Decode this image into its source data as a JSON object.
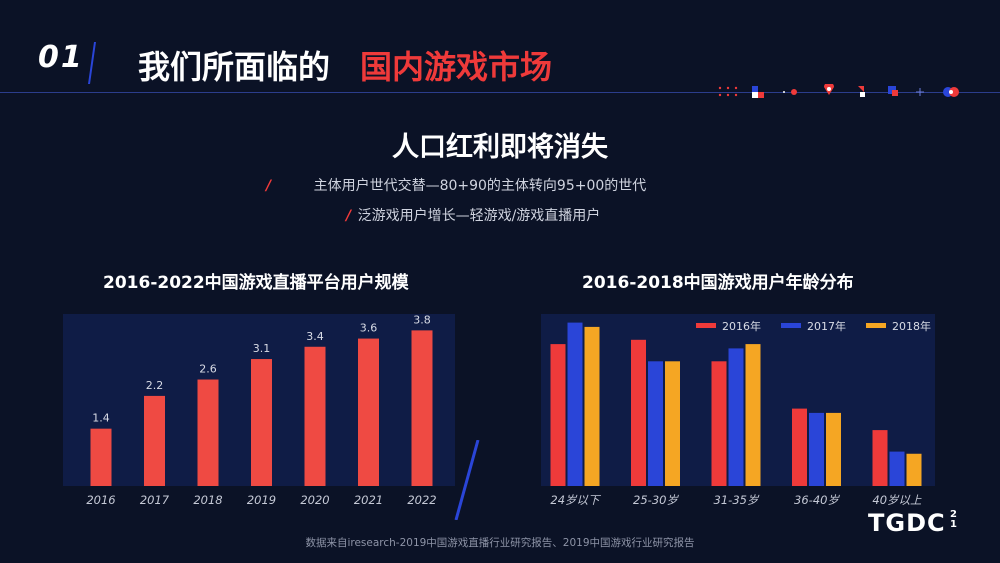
{
  "header": {
    "section_number": "01",
    "title_prefix": "我们所面临的",
    "title_highlight": "国内游戏市场"
  },
  "subtitle": "人口红利即将消失",
  "bullets": [
    "主体用户世代交替—80+90的主体转向95+00的世代",
    "泛游戏用户增长—轻游戏/游戏直播用户"
  ],
  "colors": {
    "accent_red": "#ef3a3a",
    "accent_blue": "#2a45d8",
    "accent_orange": "#f5a623",
    "background": "#0b1226"
  },
  "chart_data": [
    {
      "type": "bar",
      "title": "2016-2022中国游戏直播平台用户规模",
      "categories": [
        "2016",
        "2017",
        "2018",
        "2019",
        "2020",
        "2021",
        "2022"
      ],
      "values": [
        1.4,
        2.2,
        2.6,
        3.1,
        3.4,
        3.6,
        3.8
      ],
      "ylim": [
        0,
        4.2
      ],
      "grid": false
    },
    {
      "type": "bar",
      "title": "2016-2018中国游戏用户年龄分布",
      "categories": [
        "24岁以下",
        "25-30岁",
        "31-35岁",
        "36-40岁",
        "40岁以上"
      ],
      "series": [
        {
          "name": "2016年",
          "color": "#ef3a3a",
          "values": [
            33,
            34,
            29,
            18,
            13
          ]
        },
        {
          "name": "2017年",
          "color": "#2a45d8",
          "values": [
            38,
            29,
            32,
            17,
            8
          ]
        },
        {
          "name": "2018年",
          "color": "#f5a623",
          "values": [
            37,
            29,
            33,
            17,
            7.5
          ]
        }
      ],
      "ylim": [
        0,
        40
      ],
      "legend_position": "top-right",
      "grid": false
    }
  ],
  "footer": "数据来自iresearch-2019中国游戏直播行业研究报告、2019中国游戏行业研究报告",
  "logo": {
    "text": "TGDC",
    "sup_top": "2",
    "sup_bottom": "1"
  }
}
